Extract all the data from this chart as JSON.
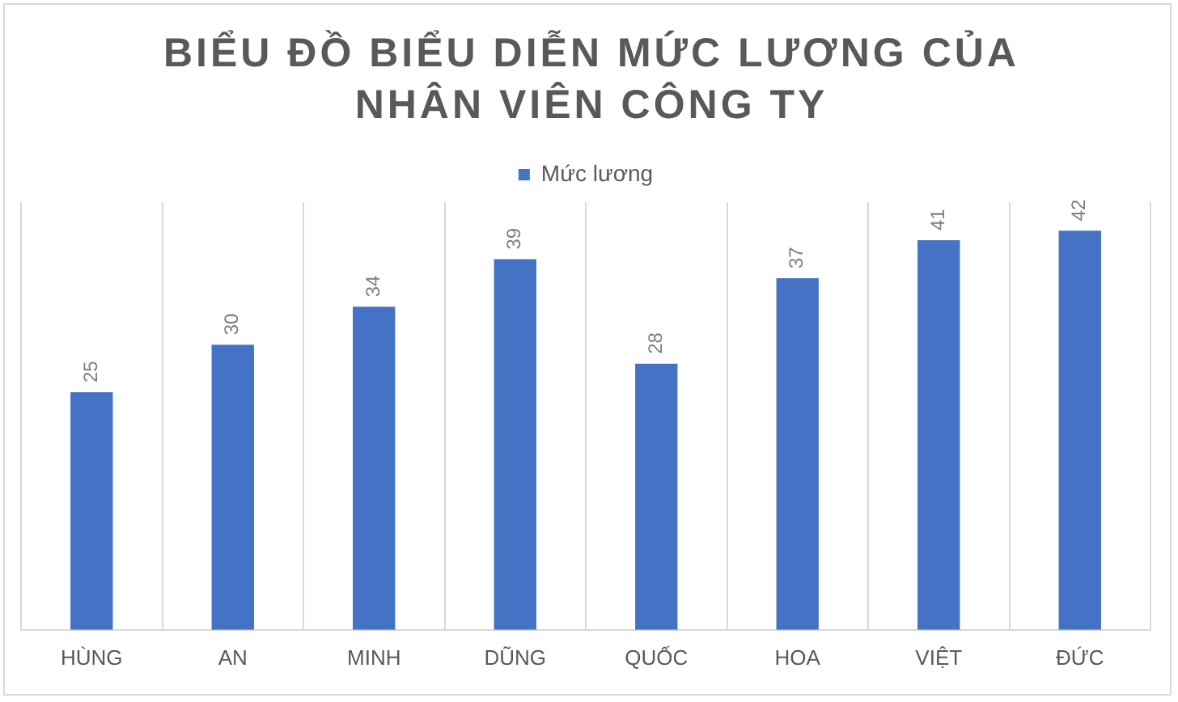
{
  "chart_data": {
    "type": "bar",
    "title": "BIỂU ĐỒ BIỂU DIỄN MỨC LƯƠNG CỦA NHÂN VIÊN CÔNG TY",
    "categories": [
      "HÙNG",
      "AN",
      "MINH",
      "DŨNG",
      "QUỐC",
      "HOA",
      "VIỆT",
      "ĐỨC"
    ],
    "series": [
      {
        "name": "Mức lương",
        "color": "#4472c4",
        "values": [
          25,
          30,
          34,
          39,
          28,
          37,
          41,
          42
        ]
      }
    ],
    "data_labels": true,
    "grid": "x",
    "legend": "top",
    "tick_labels": "x"
  }
}
